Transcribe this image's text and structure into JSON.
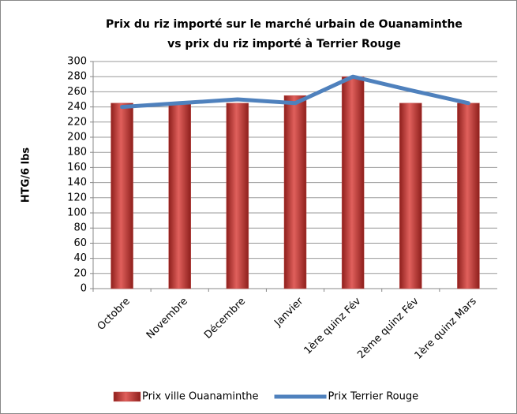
{
  "chart_data": {
    "type": "bar",
    "title": [
      "Prix du riz importé sur le marché urbain de Ouanaminthe",
      "vs prix du riz importé à Terrier Rouge"
    ],
    "y_label": "HTG/6 lbs",
    "categories": [
      "Octobre",
      "Novembre",
      "Décembre",
      "Janvier",
      "1ère quinz Fév",
      "2ème quinz Fév",
      "1ère quinz Mars"
    ],
    "series": [
      {
        "name": "Prix ville Ouanaminthe",
        "type": "bar",
        "color": "#c0504d",
        "values": [
          245,
          245,
          245,
          255,
          280,
          245,
          245
        ]
      },
      {
        "name": "Prix Terrier Rouge",
        "type": "line",
        "color": "#4f81bd",
        "values": [
          240,
          245,
          250,
          245,
          280,
          262,
          245
        ]
      }
    ],
    "ylim": [
      0,
      300
    ],
    "yticks": [
      0,
      20,
      40,
      60,
      80,
      100,
      120,
      140,
      160,
      180,
      200,
      220,
      240,
      260,
      280,
      300
    ],
    "grid": true,
    "legend": "bottom"
  }
}
